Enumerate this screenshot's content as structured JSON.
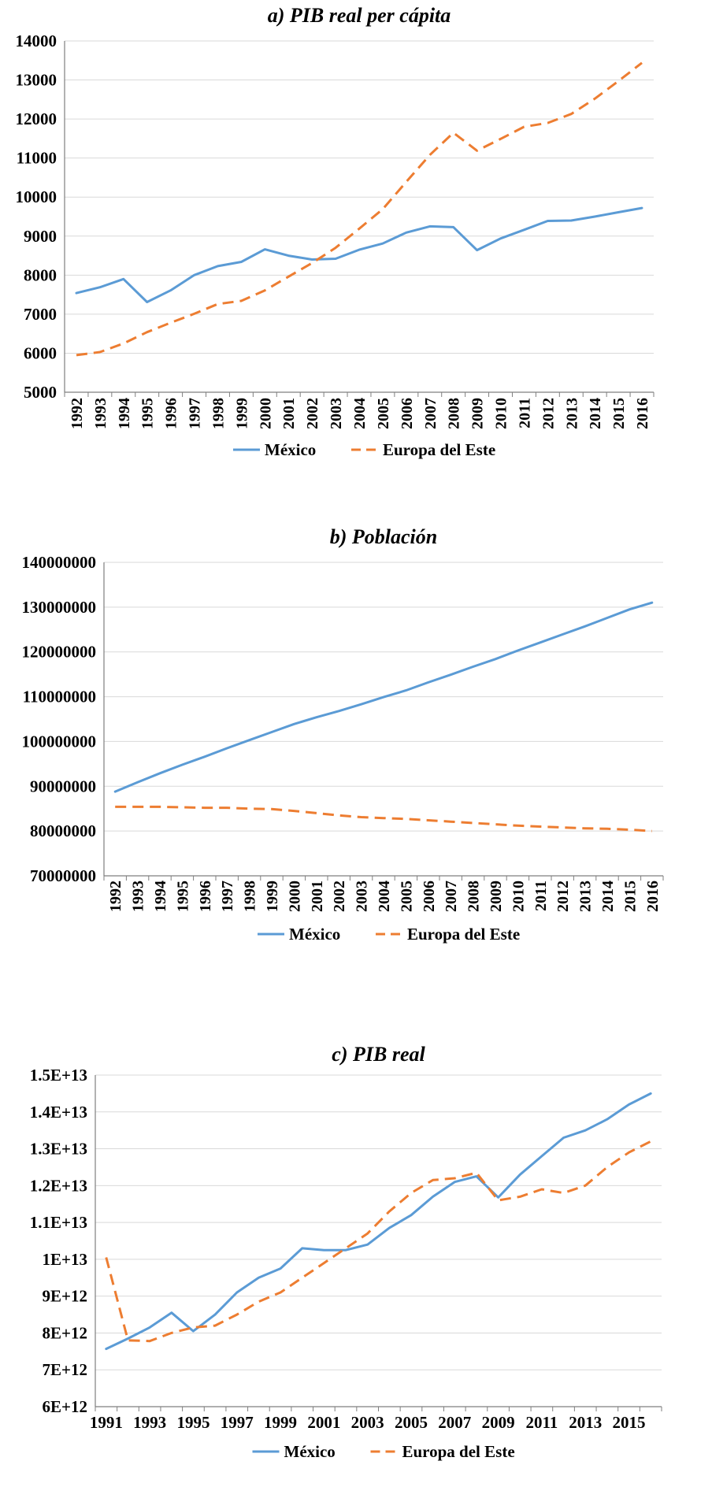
{
  "colors": {
    "mexico": "#5b9bd5",
    "europe": "#ed7d31",
    "grid": "#d9d9d9",
    "axis": "#7f7f7f",
    "text": "#000000"
  },
  "chart_data": [
    {
      "id": "a",
      "type": "line",
      "title": "a) PIB real per cápita",
      "x": [
        "1992",
        "1993",
        "1994",
        "1995",
        "1996",
        "1997",
        "1998",
        "1999",
        "2000",
        "2001",
        "2002",
        "2003",
        "2004",
        "2005",
        "2006",
        "2007",
        "2008",
        "2009",
        "2010",
        "2011",
        "2012",
        "2013",
        "2014",
        "2015",
        "2016"
      ],
      "x_tick_labels": [
        "1992",
        "1993",
        "1994",
        "1995",
        "1996",
        "1997",
        "1998",
        "1999",
        "2000",
        "2001",
        "2002",
        "2003",
        "2004",
        "2005",
        "2006",
        "2007",
        "2008",
        "2009",
        "2010",
        "2011",
        "2012",
        "2013",
        "2014",
        "2015",
        "2016"
      ],
      "x_tick_rotated": true,
      "ylim": [
        5000,
        14000
      ],
      "yticks": [
        5000,
        6000,
        7000,
        8000,
        9000,
        10000,
        11000,
        12000,
        13000,
        14000
      ],
      "ytick_labels": [
        "5000",
        "6000",
        "7000",
        "8000",
        "9000",
        "10000",
        "11000",
        "12000",
        "13000",
        "14000"
      ],
      "grid": true,
      "legend": "bottom",
      "series": [
        {
          "name": "México",
          "style": "solid",
          "color_key": "mexico",
          "values": [
            7540,
            7690,
            7900,
            7310,
            7610,
            8000,
            8230,
            8340,
            8660,
            8500,
            8400,
            8420,
            8650,
            8810,
            9090,
            9250,
            9230,
            8640,
            8940,
            9160,
            9390,
            9400,
            9500,
            9610,
            9720
          ]
        },
        {
          "name": "Europa del Este",
          "style": "dashed",
          "color_key": "europe",
          "values": [
            5950,
            6030,
            6250,
            6540,
            6780,
            7010,
            7260,
            7340,
            7610,
            7960,
            8310,
            8700,
            9190,
            9690,
            10390,
            11080,
            11650,
            11190,
            11490,
            11800,
            11900,
            12130,
            12520,
            12970,
            13440
          ]
        }
      ]
    },
    {
      "id": "b",
      "type": "line",
      "title": "b) Población",
      "x": [
        "1992",
        "1993",
        "1994",
        "1995",
        "1996",
        "1997",
        "1998",
        "1999",
        "2000",
        "2001",
        "2002",
        "2003",
        "2004",
        "2005",
        "2006",
        "2007",
        "2008",
        "2009",
        "2010",
        "2011",
        "2012",
        "2013",
        "2014",
        "2015",
        "2016"
      ],
      "x_tick_labels": [
        "1992",
        "1993",
        "1994",
        "1995",
        "1996",
        "1997",
        "1998",
        "1999",
        "2000",
        "2001",
        "2002",
        "2003",
        "2004",
        "2005",
        "2006",
        "2007",
        "2008",
        "2009",
        "2010",
        "2011",
        "2012",
        "2013",
        "2014",
        "2015",
        "2016"
      ],
      "x_tick_rotated": true,
      "ylim": [
        70000000,
        140000000
      ],
      "yticks": [
        70000000,
        80000000,
        90000000,
        100000000,
        110000000,
        120000000,
        130000000,
        140000000
      ],
      "ytick_labels": [
        "70000000",
        "80000000",
        "90000000",
        "100000000",
        "110000000",
        "120000000",
        "130000000",
        "140000000"
      ],
      "grid": true,
      "legend": "bottom",
      "series": [
        {
          "name": "México",
          "style": "solid",
          "color_key": "mexico",
          "values": [
            88800000,
            90900000,
            92900000,
            94800000,
            96600000,
            98500000,
            100300000,
            102100000,
            103900000,
            105400000,
            106800000,
            108300000,
            109900000,
            111400000,
            113200000,
            114900000,
            116700000,
            118400000,
            120300000,
            122100000,
            123900000,
            125700000,
            127600000,
            129500000,
            131000000
          ]
        },
        {
          "name": "Europa del Este",
          "style": "dashed",
          "color_key": "europe",
          "values": [
            85400000,
            85400000,
            85400000,
            85300000,
            85200000,
            85200000,
            85000000,
            84900000,
            84500000,
            84000000,
            83500000,
            83100000,
            82900000,
            82700000,
            82400000,
            82100000,
            81800000,
            81500000,
            81200000,
            81000000,
            80800000,
            80600000,
            80500000,
            80300000,
            80000000
          ]
        }
      ]
    },
    {
      "id": "c",
      "type": "line",
      "title": "c) PIB real",
      "x": [
        "1991",
        "1992",
        "1993",
        "1994",
        "1995",
        "1996",
        "1997",
        "1998",
        "1999",
        "2000",
        "2001",
        "2002",
        "2003",
        "2004",
        "2005",
        "2006",
        "2007",
        "2008",
        "2009",
        "2010",
        "2011",
        "2012",
        "2013",
        "2014",
        "2015",
        "2016"
      ],
      "x_tick_labels": [
        "1991",
        "",
        "1993",
        "",
        "1995",
        "",
        "1997",
        "",
        "1999",
        "",
        "2001",
        "",
        "2003",
        "",
        "2005",
        "",
        "2007",
        "",
        "2009",
        "",
        "2011",
        "",
        "2013",
        "",
        "2015",
        ""
      ],
      "x_tick_rotated": false,
      "ylim": [
        6000000000000.0,
        15000000000000.0
      ],
      "yticks": [
        6000000000000.0,
        7000000000000.0,
        8000000000000.0,
        9000000000000.0,
        10000000000000.0,
        11000000000000.0,
        12000000000000.0,
        13000000000000.0,
        14000000000000.0,
        15000000000000.0
      ],
      "ytick_labels": [
        "6E+12",
        "7E+12",
        "8E+12",
        "9E+12",
        "1E+13",
        "1.1E+13",
        "1.2E+13",
        "1.3E+13",
        "1.4E+13",
        "1.5E+13"
      ],
      "grid": true,
      "legend": "bottom",
      "series": [
        {
          "name": "México",
          "style": "solid",
          "color_key": "mexico",
          "values": [
            7570000000000.0,
            7850000000000.0,
            8150000000000.0,
            8550000000000.0,
            8050000000000.0,
            8500000000000.0,
            9100000000000.0,
            9500000000000.0,
            9750000000000.0,
            10300000000000.0,
            10250000000000.0,
            10250000000000.0,
            10400000000000.0,
            10850000000000.0,
            11200000000000.0,
            11700000000000.0,
            12100000000000.0,
            12250000000000.0,
            11680000000000.0,
            12300000000000.0,
            12800000000000.0,
            13300000000000.0,
            13500000000000.0,
            13800000000000.0,
            14200000000000.0,
            14500000000000.0
          ]
        },
        {
          "name": "Europa del Este",
          "style": "dashed",
          "color_key": "europe",
          "values": [
            10050000000000.0,
            7800000000000.0,
            7780000000000.0,
            8000000000000.0,
            8150000000000.0,
            8200000000000.0,
            8500000000000.0,
            8850000000000.0,
            9100000000000.0,
            9500000000000.0,
            9900000000000.0,
            10300000000000.0,
            10700000000000.0,
            11300000000000.0,
            11800000000000.0,
            12150000000000.0,
            12200000000000.0,
            12350000000000.0,
            11600000000000.0,
            11700000000000.0,
            11900000000000.0,
            11800000000000.0,
            12000000000000.0,
            12500000000000.0,
            12900000000000.0,
            13200000000000.0
          ]
        }
      ]
    }
  ]
}
